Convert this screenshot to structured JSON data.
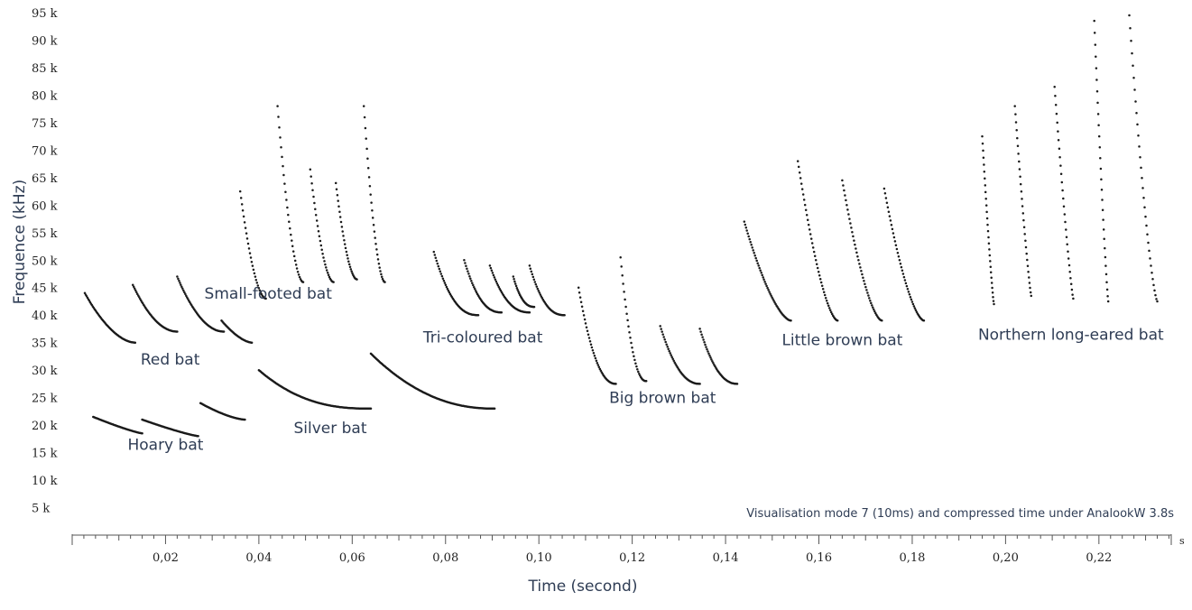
{
  "chart_data": {
    "type": "scatter",
    "xlabel": "Time (second)",
    "ylabel": "Frequence (kHz)",
    "x_unit": "s",
    "annotation": "Visualisation mode 7 (10ms) and compressed time under AnalookW 3.8s",
    "xlim": [
      0.0,
      0.2355
    ],
    "ylim": [
      0,
      95
    ],
    "x_ticks": [
      {
        "value": 0.02,
        "label": "0,02"
      },
      {
        "value": 0.04,
        "label": "0,04"
      },
      {
        "value": 0.06,
        "label": "0,06"
      },
      {
        "value": 0.08,
        "label": "0,08"
      },
      {
        "value": 0.1,
        "label": "0,10"
      },
      {
        "value": 0.12,
        "label": "0,12"
      },
      {
        "value": 0.14,
        "label": "0,14"
      },
      {
        "value": 0.16,
        "label": "0,16"
      },
      {
        "value": 0.18,
        "label": "0,18"
      },
      {
        "value": 0.2,
        "label": "0,20"
      },
      {
        "value": 0.22,
        "label": "0,22"
      }
    ],
    "y_ticks": [
      {
        "value": 5,
        "label": "5 k"
      },
      {
        "value": 10,
        "label": "10 k"
      },
      {
        "value": 15,
        "label": "15 k"
      },
      {
        "value": 20,
        "label": "20 k"
      },
      {
        "value": 25,
        "label": "25 k"
      },
      {
        "value": 30,
        "label": "30 k"
      },
      {
        "value": 35,
        "label": "35 k"
      },
      {
        "value": 40,
        "label": "40 k"
      },
      {
        "value": 45,
        "label": "45 k"
      },
      {
        "value": 50,
        "label": "50 k"
      },
      {
        "value": 55,
        "label": "55 k"
      },
      {
        "value": 60,
        "label": "60 k"
      },
      {
        "value": 65,
        "label": "65 k"
      },
      {
        "value": 70,
        "label": "70 k"
      },
      {
        "value": 75,
        "label": "75 k"
      },
      {
        "value": 80,
        "label": "80 k"
      },
      {
        "value": 85,
        "label": "85 k"
      },
      {
        "value": 90,
        "label": "90 k"
      },
      {
        "value": 95,
        "label": "95 k"
      }
    ],
    "series": [
      {
        "name": "Red bat",
        "calls": [
          {
            "t0": 0.0027,
            "f0": 44.0,
            "t1": 0.0135,
            "f1": 35.0,
            "curve": 1.8
          },
          {
            "t0": 0.013,
            "f0": 45.5,
            "t1": 0.0225,
            "f1": 37.0,
            "curve": 2.0
          },
          {
            "t0": 0.0225,
            "f0": 47.0,
            "t1": 0.0325,
            "f1": 37.0,
            "curve": 2.0
          },
          {
            "t0": 0.032,
            "f0": 39.0,
            "t1": 0.0385,
            "f1": 35.0,
            "curve": 1.6
          }
        ]
      },
      {
        "name": "Hoary bat",
        "calls": [
          {
            "t0": 0.0045,
            "f0": 21.5,
            "t1": 0.015,
            "f1": 18.5,
            "curve": 1.2
          },
          {
            "t0": 0.015,
            "f0": 21.0,
            "t1": 0.027,
            "f1": 18.0,
            "curve": 1.2
          },
          {
            "t0": 0.0275,
            "f0": 24.0,
            "t1": 0.037,
            "f1": 21.0,
            "curve": 1.5
          }
        ]
      },
      {
        "name": "Small-footed bat",
        "calls": [
          {
            "t0": 0.036,
            "f0": 62.5,
            "t1": 0.0415,
            "f1": 43.0,
            "curve": 1.8
          },
          {
            "t0": 0.044,
            "f0": 78.0,
            "t1": 0.0495,
            "f1": 46.0,
            "curve": 1.8
          },
          {
            "t0": 0.051,
            "f0": 66.5,
            "t1": 0.056,
            "f1": 46.0,
            "curve": 1.8
          },
          {
            "t0": 0.0565,
            "f0": 64.0,
            "t1": 0.061,
            "f1": 46.5,
            "curve": 1.8
          },
          {
            "t0": 0.0625,
            "f0": 78.0,
            "t1": 0.067,
            "f1": 46.0,
            "curve": 1.8
          }
        ]
      },
      {
        "name": "Silver bat",
        "calls": [
          {
            "t0": 0.04,
            "f0": 30.0,
            "t1": 0.064,
            "f1": 23.0,
            "curve": 2.5
          },
          {
            "t0": 0.064,
            "f0": 33.0,
            "t1": 0.0905,
            "f1": 23.0,
            "curve": 2.2
          }
        ]
      },
      {
        "name": "Tri-coloured bat",
        "calls": [
          {
            "t0": 0.0775,
            "f0": 51.5,
            "t1": 0.087,
            "f1": 40.0,
            "curve": 2.4
          },
          {
            "t0": 0.084,
            "f0": 50.0,
            "t1": 0.092,
            "f1": 40.5,
            "curve": 2.4
          },
          {
            "t0": 0.0895,
            "f0": 49.0,
            "t1": 0.098,
            "f1": 40.5,
            "curve": 2.4
          },
          {
            "t0": 0.0945,
            "f0": 47.0,
            "t1": 0.099,
            "f1": 41.5,
            "curve": 2.4
          },
          {
            "t0": 0.098,
            "f0": 49.0,
            "t1": 0.1055,
            "f1": 40.0,
            "curve": 2.4
          }
        ]
      },
      {
        "name": "Big brown bat",
        "calls": [
          {
            "t0": 0.1085,
            "f0": 45.0,
            "t1": 0.1165,
            "f1": 27.5,
            "curve": 2.2
          },
          {
            "t0": 0.1175,
            "f0": 50.5,
            "t1": 0.123,
            "f1": 28.0,
            "curve": 2.2
          },
          {
            "t0": 0.126,
            "f0": 38.0,
            "t1": 0.1345,
            "f1": 27.5,
            "curve": 2.2
          },
          {
            "t0": 0.1345,
            "f0": 37.5,
            "t1": 0.1425,
            "f1": 27.5,
            "curve": 2.2
          }
        ]
      },
      {
        "name": "Little brown bat",
        "calls": [
          {
            "t0": 0.144,
            "f0": 57.0,
            "t1": 0.154,
            "f1": 39.0,
            "curve": 1.6
          },
          {
            "t0": 0.1555,
            "f0": 68.0,
            "t1": 0.164,
            "f1": 39.0,
            "curve": 1.6
          },
          {
            "t0": 0.165,
            "f0": 64.5,
            "t1": 0.1735,
            "f1": 39.0,
            "curve": 1.6
          },
          {
            "t0": 0.174,
            "f0": 63.0,
            "t1": 0.1825,
            "f1": 39.0,
            "curve": 1.6
          }
        ]
      },
      {
        "name": "Northern long-eared bat",
        "calls": [
          {
            "t0": 0.195,
            "f0": 72.5,
            "t1": 0.1975,
            "f1": 42.0,
            "curve": 1.2
          },
          {
            "t0": 0.202,
            "f0": 78.0,
            "t1": 0.2055,
            "f1": 43.5,
            "curve": 1.2
          },
          {
            "t0": 0.2105,
            "f0": 81.5,
            "t1": 0.2145,
            "f1": 43.0,
            "curve": 1.2
          },
          {
            "t0": 0.219,
            "f0": 93.5,
            "t1": 0.222,
            "f1": 42.5,
            "curve": 1.2
          },
          {
            "t0": 0.2265,
            "f0": 94.5,
            "t1": 0.2325,
            "f1": 42.5,
            "curve": 1.4
          }
        ]
      }
    ]
  }
}
